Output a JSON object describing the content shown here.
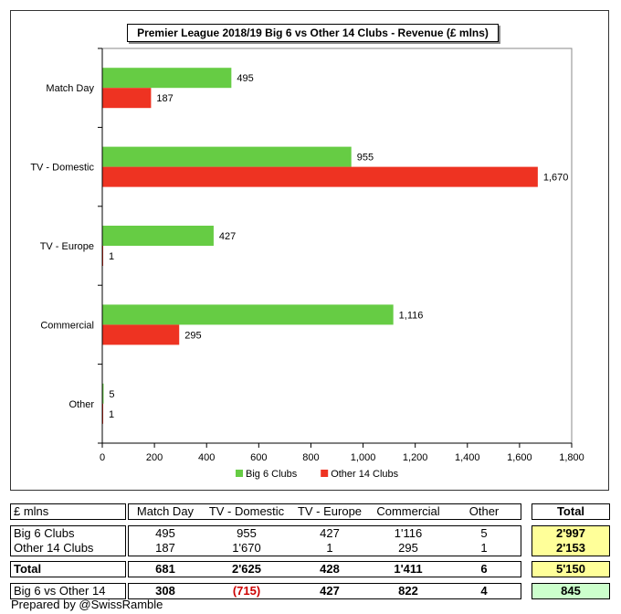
{
  "chart_data": {
    "type": "bar",
    "orientation": "horizontal",
    "title": "Premier League 2018/19 Big 6 vs Other 14 Clubs - Revenue (£ mlns)",
    "categories": [
      "Match Day",
      "TV - Domestic",
      "TV - Europe",
      "Commercial",
      "Other"
    ],
    "series": [
      {
        "name": "Big 6 Clubs",
        "color": "#66cc44",
        "values": [
          495,
          955,
          427,
          1116,
          5
        ],
        "labels": [
          "495",
          "955",
          "427",
          "1,116",
          "5"
        ]
      },
      {
        "name": "Other 14 Clubs",
        "color": "#ee3322",
        "values": [
          187,
          1670,
          1,
          295,
          1
        ],
        "labels": [
          "187",
          "1,670",
          "1",
          "295",
          "1"
        ]
      }
    ],
    "xlim": [
      0,
      1800
    ],
    "xticks": [
      "0",
      "200",
      "400",
      "600",
      "800",
      "1,000",
      "1,200",
      "1,400",
      "1,600",
      "1,800"
    ],
    "xlabel": "",
    "ylabel": "",
    "legend_position": "bottom",
    "grid": false
  },
  "table": {
    "corner_label": "£ mlns",
    "columns": [
      "Match Day",
      "TV - Domestic",
      "TV - Europe",
      "Commercial",
      "Other",
      "Total"
    ],
    "rows": [
      {
        "label": "Big 6 Clubs",
        "values": [
          "495",
          "955",
          "427",
          "1'116",
          "5",
          "2'997"
        ]
      },
      {
        "label": "Other 14 Clubs",
        "values": [
          "187",
          "1'670",
          "1",
          "295",
          "1",
          "2'153"
        ]
      }
    ],
    "total": {
      "label": "Total",
      "values": [
        "681",
        "2'625",
        "428",
        "1'411",
        "6",
        "5'150"
      ]
    },
    "diff": {
      "label": "Big 6 vs Other 14",
      "values": [
        "308",
        "(715)",
        "427",
        "822",
        "4",
        "845"
      ]
    }
  },
  "footer": "Prepared by @SwissRamble"
}
